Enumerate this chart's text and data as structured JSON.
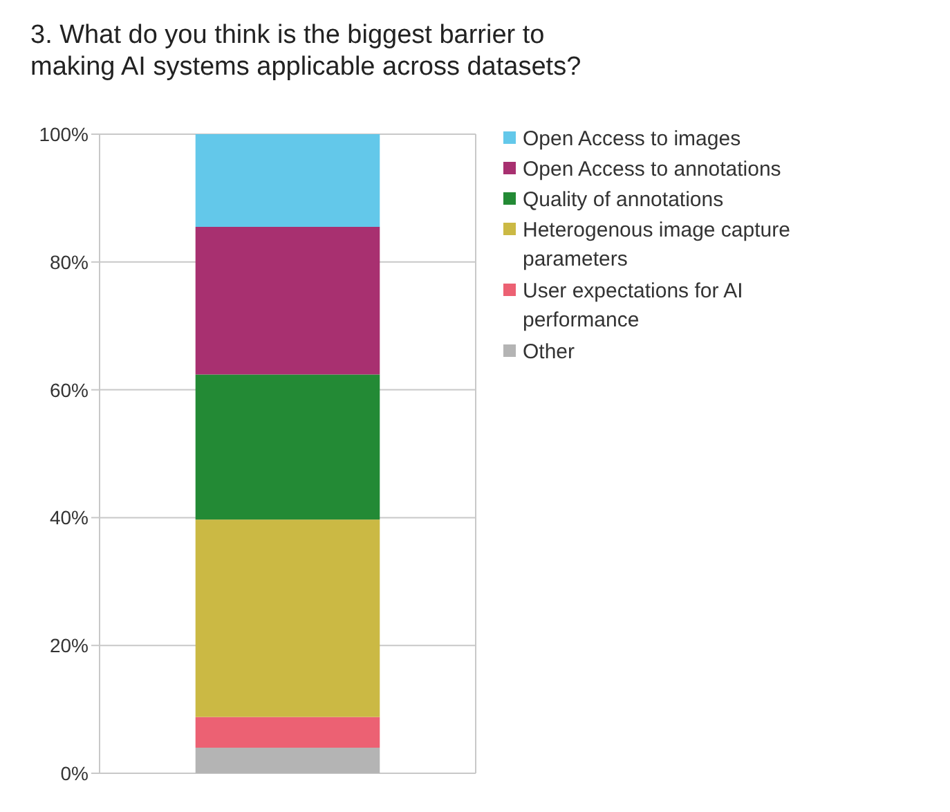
{
  "chart_data": {
    "type": "bar",
    "title": "3.  What do you think is the biggest barrier to making AI systems applicable across datasets?",
    "categories": [
      null
    ],
    "stacked": true,
    "ylim": [
      0,
      100
    ],
    "yticks": [
      {
        "value": 0,
        "label": "0%"
      },
      {
        "value": 20,
        "label": "20%"
      },
      {
        "value": 40,
        "label": "40%"
      },
      {
        "value": 60,
        "label": "60%"
      },
      {
        "value": 80,
        "label": "80%"
      },
      {
        "value": 100,
        "label": "100%"
      }
    ],
    "grid": "y",
    "legend": "right",
    "series": [
      {
        "name": "Other",
        "color": "#b4b4b4",
        "values": [
          4
        ]
      },
      {
        "name": "User expectations for AI performance",
        "color": "#ec6173",
        "values": [
          4.8
        ]
      },
      {
        "name": "Heterogenous image capture parameters",
        "color": "#cbb944",
        "values": [
          30.9
        ]
      },
      {
        "name": "Quality of annotations",
        "color": "#238a35",
        "values": [
          22.7
        ]
      },
      {
        "name": "Open Access to annotations",
        "color": "#a83070",
        "values": [
          23.1
        ]
      },
      {
        "name": "Open Access to images",
        "color": "#63c8ea",
        "values": [
          14.5
        ]
      }
    ]
  }
}
